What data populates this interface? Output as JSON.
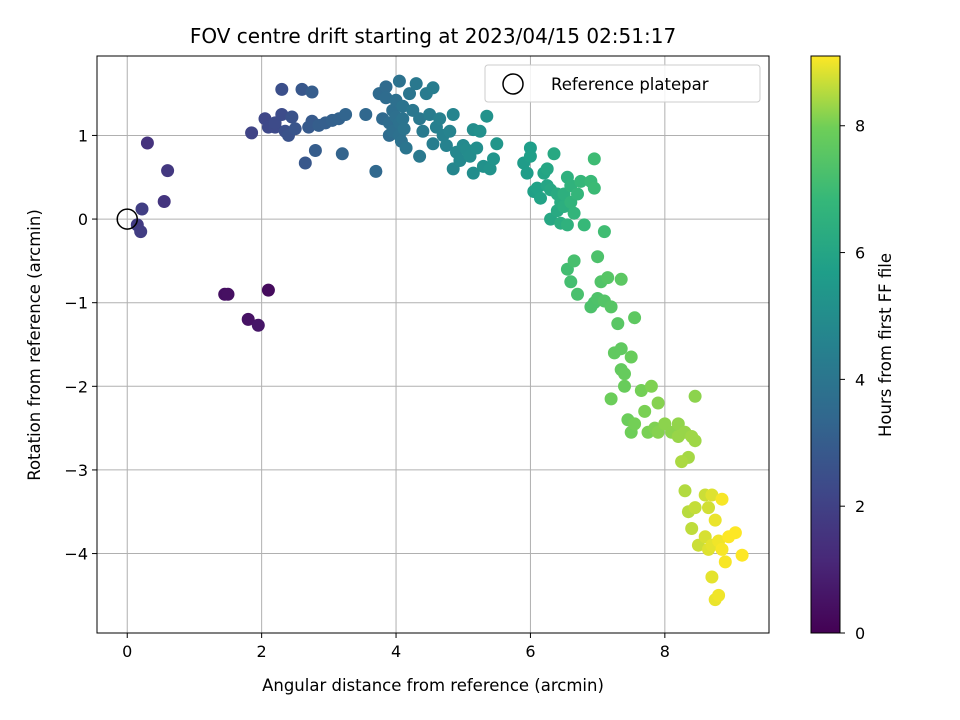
{
  "chart_data": {
    "type": "scatter",
    "title": "FOV centre drift starting at 2023/04/15 02:51:17",
    "xlabel": "Angular distance from reference (arcmin)",
    "ylabel": "Rotation from reference (arcmin)",
    "xlim": [
      -0.45,
      9.55
    ],
    "ylim": [
      -4.95,
      1.95
    ],
    "xticks": [
      0,
      2,
      4,
      6,
      8
    ],
    "yticks": [
      1,
      0,
      -1,
      -2,
      -3,
      -4
    ],
    "grid": true,
    "legend": {
      "label": "Reference platepar",
      "position": "top-right"
    },
    "reference_point": [
      0,
      0
    ],
    "colorbar": {
      "label": "Hours from first FF file",
      "range": [
        0,
        9.1
      ],
      "ticks": [
        0,
        2,
        4,
        6,
        8
      ],
      "colormap": "viridis"
    },
    "points": [
      [
        2.1,
        -0.85,
        0.3
      ],
      [
        1.45,
        -0.9,
        0.4
      ],
      [
        1.5,
        -0.9,
        0.45
      ],
      [
        1.8,
        -1.2,
        0.5
      ],
      [
        1.95,
        -1.27,
        0.6
      ],
      [
        0.3,
        0.91,
        1.5
      ],
      [
        0.55,
        0.21,
        1.6
      ],
      [
        0.6,
        0.58,
        1.7
      ],
      [
        0.15,
        -0.07,
        1.8
      ],
      [
        0.2,
        -0.15,
        1.85
      ],
      [
        0.22,
        0.12,
        1.9
      ],
      [
        1.85,
        1.03,
        2.1
      ],
      [
        2.05,
        1.2,
        2.2
      ],
      [
        2.1,
        1.1,
        2.25
      ],
      [
        2.2,
        1.1,
        2.3
      ],
      [
        2.2,
        1.15,
        2.35
      ],
      [
        2.3,
        1.25,
        2.4
      ],
      [
        2.3,
        1.55,
        2.5
      ],
      [
        2.35,
        1.05,
        2.5
      ],
      [
        2.4,
        1.0,
        2.6
      ],
      [
        2.45,
        1.22,
        2.6
      ],
      [
        2.5,
        1.08,
        2.7
      ],
      [
        2.6,
        1.55,
        2.8
      ],
      [
        2.65,
        0.67,
        2.8
      ],
      [
        2.7,
        1.1,
        2.9
      ],
      [
        2.75,
        1.17,
        2.9
      ],
      [
        2.75,
        1.52,
        3.0
      ],
      [
        2.8,
        0.82,
        3.0
      ],
      [
        2.85,
        1.12,
        3.05
      ],
      [
        2.95,
        1.15,
        3.1
      ],
      [
        3.05,
        1.18,
        3.15
      ],
      [
        3.15,
        1.2,
        3.2
      ],
      [
        3.2,
        0.78,
        3.25
      ],
      [
        3.25,
        1.25,
        3.3
      ],
      [
        3.55,
        1.25,
        3.4
      ],
      [
        3.7,
        0.57,
        3.45
      ],
      [
        3.75,
        1.5,
        3.5
      ],
      [
        3.8,
        1.2,
        3.5
      ],
      [
        3.85,
        1.58,
        3.55
      ],
      [
        3.85,
        1.45,
        3.6
      ],
      [
        3.9,
        1.0,
        3.6
      ],
      [
        3.9,
        1.15,
        3.65
      ],
      [
        3.95,
        1.05,
        3.7
      ],
      [
        3.95,
        1.3,
        3.7
      ],
      [
        4.0,
        1.42,
        3.75
      ],
      [
        4.0,
        1.22,
        3.75
      ],
      [
        4.05,
        1.0,
        3.8
      ],
      [
        4.05,
        1.15,
        3.8
      ],
      [
        4.05,
        1.65,
        3.85
      ],
      [
        4.08,
        0.93,
        3.85
      ],
      [
        4.1,
        1.35,
        3.9
      ],
      [
        4.1,
        1.2,
        3.9
      ],
      [
        4.12,
        1.08,
        3.95
      ],
      [
        4.15,
        0.85,
        4.0
      ],
      [
        4.2,
        1.5,
        4.0
      ],
      [
        4.25,
        1.3,
        4.05
      ],
      [
        4.3,
        1.62,
        4.1
      ],
      [
        4.35,
        1.2,
        4.1
      ],
      [
        4.35,
        0.75,
        4.15
      ],
      [
        4.4,
        1.05,
        4.2
      ],
      [
        4.45,
        1.5,
        4.25
      ],
      [
        4.5,
        1.25,
        4.3
      ],
      [
        4.55,
        0.9,
        4.35
      ],
      [
        4.55,
        1.57,
        4.35
      ],
      [
        4.6,
        1.1,
        4.4
      ],
      [
        4.65,
        1.2,
        4.45
      ],
      [
        4.7,
        1.0,
        4.5
      ],
      [
        4.75,
        0.88,
        4.55
      ],
      [
        4.8,
        1.05,
        4.6
      ],
      [
        4.85,
        1.25,
        4.65
      ],
      [
        4.85,
        0.6,
        4.7
      ],
      [
        4.9,
        0.8,
        4.75
      ],
      [
        4.95,
        0.7,
        4.8
      ],
      [
        5.0,
        0.88,
        4.85
      ],
      [
        5.05,
        0.83,
        4.9
      ],
      [
        5.1,
        0.75,
        4.95
      ],
      [
        5.15,
        1.07,
        5.0
      ],
      [
        5.15,
        0.55,
        5.0
      ],
      [
        5.2,
        0.85,
        5.05
      ],
      [
        5.25,
        1.05,
        5.1
      ],
      [
        5.3,
        0.63,
        5.15
      ],
      [
        5.35,
        1.23,
        5.2
      ],
      [
        5.4,
        0.6,
        5.25
      ],
      [
        5.45,
        0.72,
        5.3
      ],
      [
        5.5,
        0.9,
        5.35
      ],
      [
        5.9,
        0.67,
        5.6
      ],
      [
        5.95,
        0.55,
        5.65
      ],
      [
        6.0,
        0.85,
        5.7
      ],
      [
        6.0,
        0.75,
        5.75
      ],
      [
        6.05,
        0.33,
        5.8
      ],
      [
        6.1,
        0.37,
        5.85
      ],
      [
        6.15,
        0.25,
        5.9
      ],
      [
        6.2,
        0.55,
        5.95
      ],
      [
        6.25,
        0.4,
        6.0
      ],
      [
        6.25,
        0.6,
        6.05
      ],
      [
        6.3,
        0.0,
        6.1
      ],
      [
        6.3,
        0.35,
        6.1
      ],
      [
        6.35,
        0.78,
        6.15
      ],
      [
        6.4,
        0.1,
        6.2
      ],
      [
        6.4,
        0.3,
        6.25
      ],
      [
        6.45,
        0.2,
        6.3
      ],
      [
        6.45,
        -0.05,
        6.35
      ],
      [
        6.5,
        0.15,
        6.4
      ],
      [
        6.5,
        0.3,
        6.45
      ],
      [
        6.55,
        0.5,
        6.5
      ],
      [
        6.55,
        -0.07,
        6.55
      ],
      [
        6.6,
        0.4,
        6.6
      ],
      [
        6.6,
        0.2,
        6.65
      ],
      [
        6.65,
        0.07,
        6.7
      ],
      [
        6.7,
        0.3,
        6.75
      ],
      [
        6.75,
        0.45,
        6.8
      ],
      [
        6.8,
        -0.07,
        6.85
      ],
      [
        6.9,
        0.45,
        6.9
      ],
      [
        6.95,
        0.37,
        6.95
      ],
      [
        6.95,
        0.72,
        7.0
      ],
      [
        7.1,
        -0.15,
        7.05
      ],
      [
        6.55,
        -0.6,
        7.1
      ],
      [
        6.6,
        -0.75,
        7.15
      ],
      [
        6.65,
        -0.5,
        7.2
      ],
      [
        6.7,
        -0.9,
        7.25
      ],
      [
        6.9,
        -1.05,
        7.3
      ],
      [
        6.95,
        -1.0,
        7.3
      ],
      [
        7.0,
        -0.95,
        7.35
      ],
      [
        7.05,
        -0.75,
        7.4
      ],
      [
        7.1,
        -0.98,
        7.45
      ],
      [
        7.15,
        -0.7,
        7.5
      ],
      [
        7.2,
        -1.05,
        7.5
      ],
      [
        7.3,
        -1.25,
        7.55
      ],
      [
        7.35,
        -0.72,
        7.6
      ],
      [
        7.55,
        -1.18,
        7.65
      ],
      [
        7.0,
        -0.45,
        7.3
      ],
      [
        7.25,
        -1.6,
        7.7
      ],
      [
        7.35,
        -1.55,
        7.7
      ],
      [
        7.35,
        -1.8,
        7.75
      ],
      [
        7.4,
        -1.85,
        7.8
      ],
      [
        7.4,
        -2.0,
        7.85
      ],
      [
        7.5,
        -1.65,
        7.85
      ],
      [
        7.2,
        -2.15,
        7.9
      ],
      [
        7.45,
        -2.4,
        7.9
      ],
      [
        7.5,
        -2.55,
        7.95
      ],
      [
        7.55,
        -2.45,
        8.0
      ],
      [
        7.65,
        -2.05,
        8.0
      ],
      [
        7.7,
        -2.3,
        8.05
      ],
      [
        7.75,
        -2.55,
        8.05
      ],
      [
        7.8,
        -2.0,
        8.1
      ],
      [
        7.85,
        -2.5,
        8.1
      ],
      [
        7.9,
        -2.2,
        8.15
      ],
      [
        7.9,
        -2.55,
        8.15
      ],
      [
        8.0,
        -2.45,
        8.2
      ],
      [
        8.1,
        -2.55,
        8.2
      ],
      [
        8.2,
        -2.45,
        8.25
      ],
      [
        8.2,
        -2.6,
        8.3
      ],
      [
        8.3,
        -2.55,
        8.3
      ],
      [
        8.4,
        -2.6,
        8.35
      ],
      [
        8.45,
        -2.65,
        8.35
      ],
      [
        8.35,
        -2.85,
        8.4
      ],
      [
        8.25,
        -2.9,
        8.45
      ],
      [
        8.45,
        -2.12,
        8.2
      ],
      [
        8.3,
        -3.25,
        8.5
      ],
      [
        8.35,
        -3.5,
        8.55
      ],
      [
        8.4,
        -3.7,
        8.6
      ],
      [
        8.45,
        -3.45,
        8.65
      ],
      [
        8.5,
        -3.9,
        8.7
      ],
      [
        8.6,
        -3.3,
        8.7
      ],
      [
        8.65,
        -3.45,
        8.75
      ],
      [
        8.6,
        -3.8,
        8.8
      ],
      [
        8.65,
        -3.95,
        8.85
      ],
      [
        8.7,
        -3.3,
        8.85
      ],
      [
        8.7,
        -3.9,
        8.9
      ],
      [
        8.7,
        -4.28,
        8.9
      ],
      [
        8.75,
        -3.6,
        8.95
      ],
      [
        8.75,
        -4.55,
        8.95
      ],
      [
        8.8,
        -4.5,
        9.0
      ],
      [
        8.8,
        -3.85,
        9.0
      ],
      [
        8.85,
        -3.35,
        9.05
      ],
      [
        8.85,
        -3.95,
        9.05
      ],
      [
        8.9,
        -4.1,
        9.05
      ],
      [
        8.95,
        -3.8,
        9.1
      ],
      [
        9.05,
        -3.75,
        9.1
      ],
      [
        9.15,
        -4.02,
        9.1
      ]
    ]
  }
}
